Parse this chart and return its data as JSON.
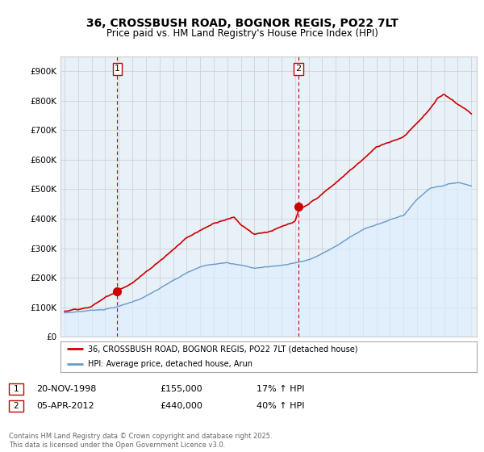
{
  "title": "36, CROSSBUSH ROAD, BOGNOR REGIS, PO22 7LT",
  "subtitle": "Price paid vs. HM Land Registry's House Price Index (HPI)",
  "ylim": [
    0,
    950000
  ],
  "yticks": [
    0,
    100000,
    200000,
    300000,
    400000,
    500000,
    600000,
    700000,
    800000,
    900000
  ],
  "ytick_labels": [
    "£0",
    "£100K",
    "£200K",
    "£300K",
    "£400K",
    "£500K",
    "£600K",
    "£700K",
    "£800K",
    "£900K"
  ],
  "x_start_year": 1995,
  "x_end_year": 2025,
  "sale1_year": 1998.88,
  "sale1_price": 155000,
  "sale1_label": "1",
  "sale1_date": "20-NOV-1998",
  "sale1_hpi_pct": "17% ↑ HPI",
  "sale2_year": 2012.25,
  "sale2_price": 440000,
  "sale2_label": "2",
  "sale2_date": "05-APR-2012",
  "sale2_hpi_pct": "40% ↑ HPI",
  "legend_label_red": "36, CROSSBUSH ROAD, BOGNOR REGIS, PO22 7LT (detached house)",
  "legend_label_blue": "HPI: Average price, detached house, Arun",
  "footer": "Contains HM Land Registry data © Crown copyright and database right 2025.\nThis data is licensed under the Open Government Licence v3.0.",
  "red_color": "#cc0000",
  "blue_color": "#6699cc",
  "blue_fill": "#ddeeff",
  "grid_color": "#cccccc",
  "background_color": "#ffffff",
  "plot_bg_color": "#e8f0f8"
}
